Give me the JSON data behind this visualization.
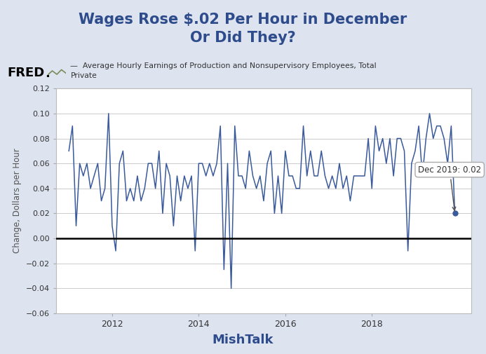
{
  "title": "Wages Rose $.02 Per Hour in December\nOr Did They?",
  "title_color": "#2E4C8C",
  "title_fontsize": 15,
  "xlabel": "MishTalk",
  "xlabel_color": "#2E4C8C",
  "xlabel_fontsize": 13,
  "ylabel": "Change, Dollars per Hour",
  "ylabel_fontsize": 8.5,
  "legend_label": "Average Hourly Earnings of Production and Nonsupervisory Employees, Total\nPrivate",
  "line_color": "#3A5A9B",
  "background_color": "#DDE3EF",
  "plot_bg_color": "#FFFFFF",
  "ylim": [
    -0.06,
    0.12
  ],
  "yticks": [
    -0.06,
    -0.04,
    -0.02,
    0.0,
    0.02,
    0.04,
    0.06,
    0.08,
    0.1,
    0.12
  ],
  "annotation_text": "Dec 2019: 0.02",
  "xtick_positions": [
    2012,
    2014,
    2016,
    2018
  ],
  "xtick_labels": [
    "2012",
    "2014",
    "2016",
    "2018"
  ],
  "data_x": [
    2011.0,
    2011.083,
    2011.167,
    2011.25,
    2011.333,
    2011.417,
    2011.5,
    2011.583,
    2011.667,
    2011.75,
    2011.833,
    2011.917,
    2012.0,
    2012.083,
    2012.167,
    2012.25,
    2012.333,
    2012.417,
    2012.5,
    2012.583,
    2012.667,
    2012.75,
    2012.833,
    2012.917,
    2013.0,
    2013.083,
    2013.167,
    2013.25,
    2013.333,
    2013.417,
    2013.5,
    2013.583,
    2013.667,
    2013.75,
    2013.833,
    2013.917,
    2014.0,
    2014.083,
    2014.167,
    2014.25,
    2014.333,
    2014.417,
    2014.5,
    2014.583,
    2014.667,
    2014.75,
    2014.833,
    2014.917,
    2015.0,
    2015.083,
    2015.167,
    2015.25,
    2015.333,
    2015.417,
    2015.5,
    2015.583,
    2015.667,
    2015.75,
    2015.833,
    2015.917,
    2016.0,
    2016.083,
    2016.167,
    2016.25,
    2016.333,
    2016.417,
    2016.5,
    2016.583,
    2016.667,
    2016.75,
    2016.833,
    2016.917,
    2017.0,
    2017.083,
    2017.167,
    2017.25,
    2017.333,
    2017.417,
    2017.5,
    2017.583,
    2017.667,
    2017.75,
    2017.833,
    2017.917,
    2018.0,
    2018.083,
    2018.167,
    2018.25,
    2018.333,
    2018.417,
    2018.5,
    2018.583,
    2018.667,
    2018.75,
    2018.833,
    2018.917,
    2019.0,
    2019.083,
    2019.167,
    2019.25,
    2019.333,
    2019.417,
    2019.5,
    2019.583,
    2019.667,
    2019.75,
    2019.833,
    2019.917
  ],
  "data_y": [
    0.07,
    0.09,
    0.01,
    0.06,
    0.05,
    0.06,
    0.04,
    0.05,
    0.06,
    0.03,
    0.04,
    0.1,
    0.01,
    -0.01,
    0.06,
    0.07,
    0.03,
    0.04,
    0.03,
    0.05,
    0.03,
    0.04,
    0.06,
    0.06,
    0.04,
    0.07,
    0.02,
    0.06,
    0.05,
    0.01,
    0.05,
    0.03,
    0.05,
    0.04,
    0.05,
    -0.01,
    0.06,
    0.06,
    0.05,
    0.06,
    0.05,
    0.06,
    0.09,
    -0.025,
    0.06,
    -0.04,
    0.09,
    0.05,
    0.05,
    0.04,
    0.07,
    0.05,
    0.04,
    0.05,
    0.03,
    0.06,
    0.07,
    0.02,
    0.05,
    0.02,
    0.07,
    0.05,
    0.05,
    0.04,
    0.04,
    0.09,
    0.05,
    0.07,
    0.05,
    0.05,
    0.07,
    0.05,
    0.04,
    0.05,
    0.04,
    0.06,
    0.04,
    0.05,
    0.03,
    0.05,
    0.05,
    0.05,
    0.05,
    0.08,
    0.04,
    0.09,
    0.07,
    0.08,
    0.06,
    0.08,
    0.05,
    0.08,
    0.08,
    0.07,
    -0.01,
    0.06,
    0.07,
    0.09,
    0.05,
    0.08,
    0.1,
    0.08,
    0.09,
    0.09,
    0.08,
    0.06,
    0.09,
    0.02
  ]
}
